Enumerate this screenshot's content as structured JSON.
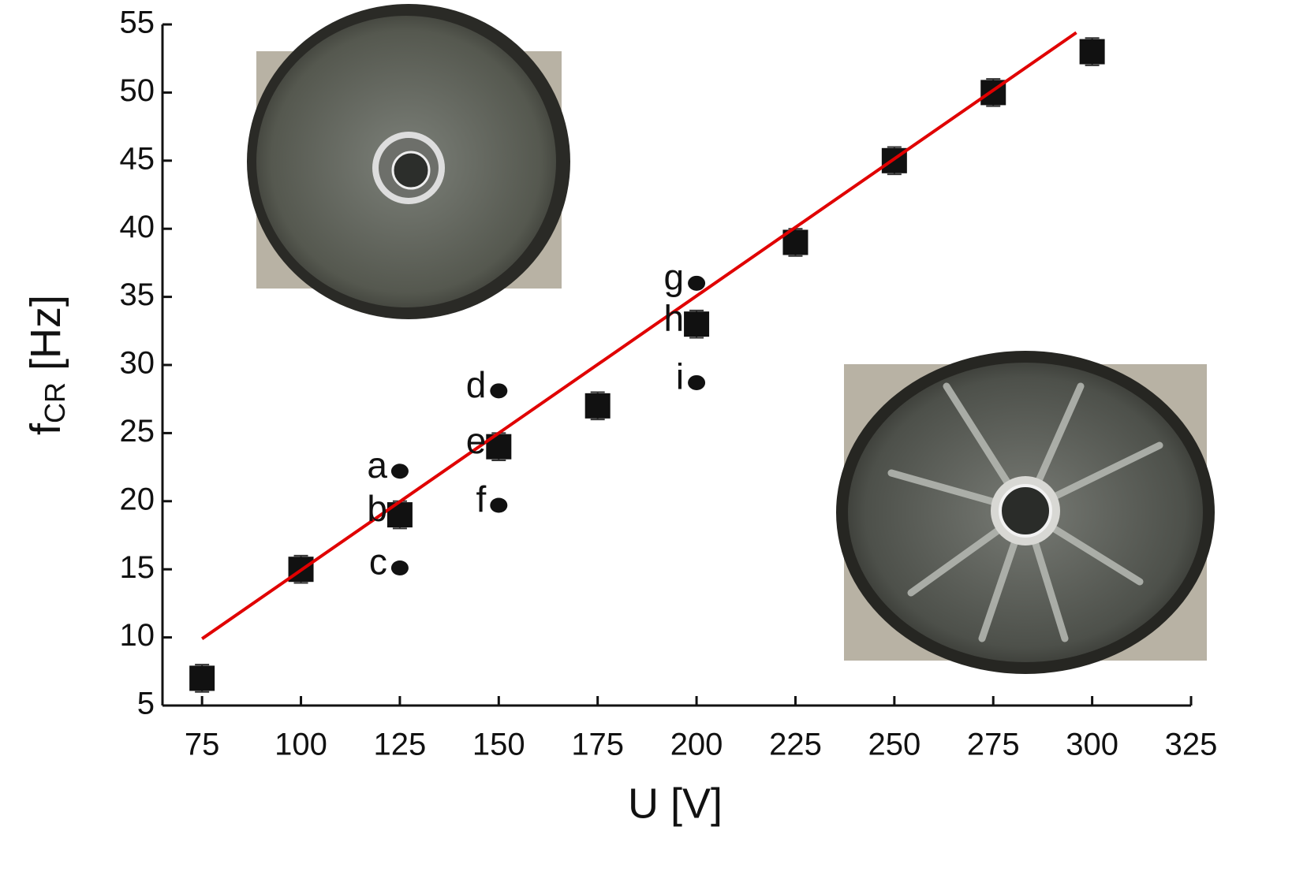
{
  "chart_data": {
    "type": "scatter",
    "xlabel": "U [V]",
    "ylabel": {
      "main": "f",
      "sub": "CR",
      "rest": " [Hz]"
    },
    "xlim": [
      65,
      325
    ],
    "xticks": [
      75,
      100,
      125,
      150,
      175,
      200,
      225,
      250,
      275,
      300,
      325
    ],
    "ylim": [
      5,
      55
    ],
    "yticks": [
      5,
      10,
      15,
      20,
      25,
      30,
      35,
      40,
      45,
      50,
      55
    ],
    "series": [
      {
        "marker": "square",
        "color": "#111111",
        "x": [
          75,
          100,
          125,
          150,
          175,
          200,
          225,
          250,
          275,
          300
        ],
        "values": [
          7,
          15,
          19,
          24,
          27,
          33,
          39,
          45,
          50,
          53
        ],
        "errors": [
          1,
          1,
          1,
          1,
          1,
          1,
          1,
          1,
          1,
          1
        ]
      },
      {
        "marker": "circle",
        "color": "#111111",
        "x": [
          125,
          125,
          150,
          150,
          200,
          200
        ],
        "values": [
          22.2,
          15.1,
          28.1,
          19.7,
          36,
          28.7
        ]
      },
      {
        "marker": "line",
        "color": "#e00000",
        "x": [
          75,
          296
        ],
        "values": [
          9.9,
          54.4
        ]
      }
    ],
    "annotations": [
      {
        "text": "a",
        "x": 125,
        "y": 22.2
      },
      {
        "text": "b",
        "x": 125,
        "y": 19
      },
      {
        "text": "c",
        "x": 125,
        "y": 15.1
      },
      {
        "text": "d",
        "x": 150,
        "y": 28.1
      },
      {
        "text": "e",
        "x": 150,
        "y": 24
      },
      {
        "text": "f",
        "x": 150,
        "y": 19.7
      },
      {
        "text": "g",
        "x": 200,
        "y": 36
      },
      {
        "text": "h",
        "x": 200,
        "y": 33
      },
      {
        "text": "i",
        "x": 200,
        "y": 28.7
      }
    ]
  }
}
